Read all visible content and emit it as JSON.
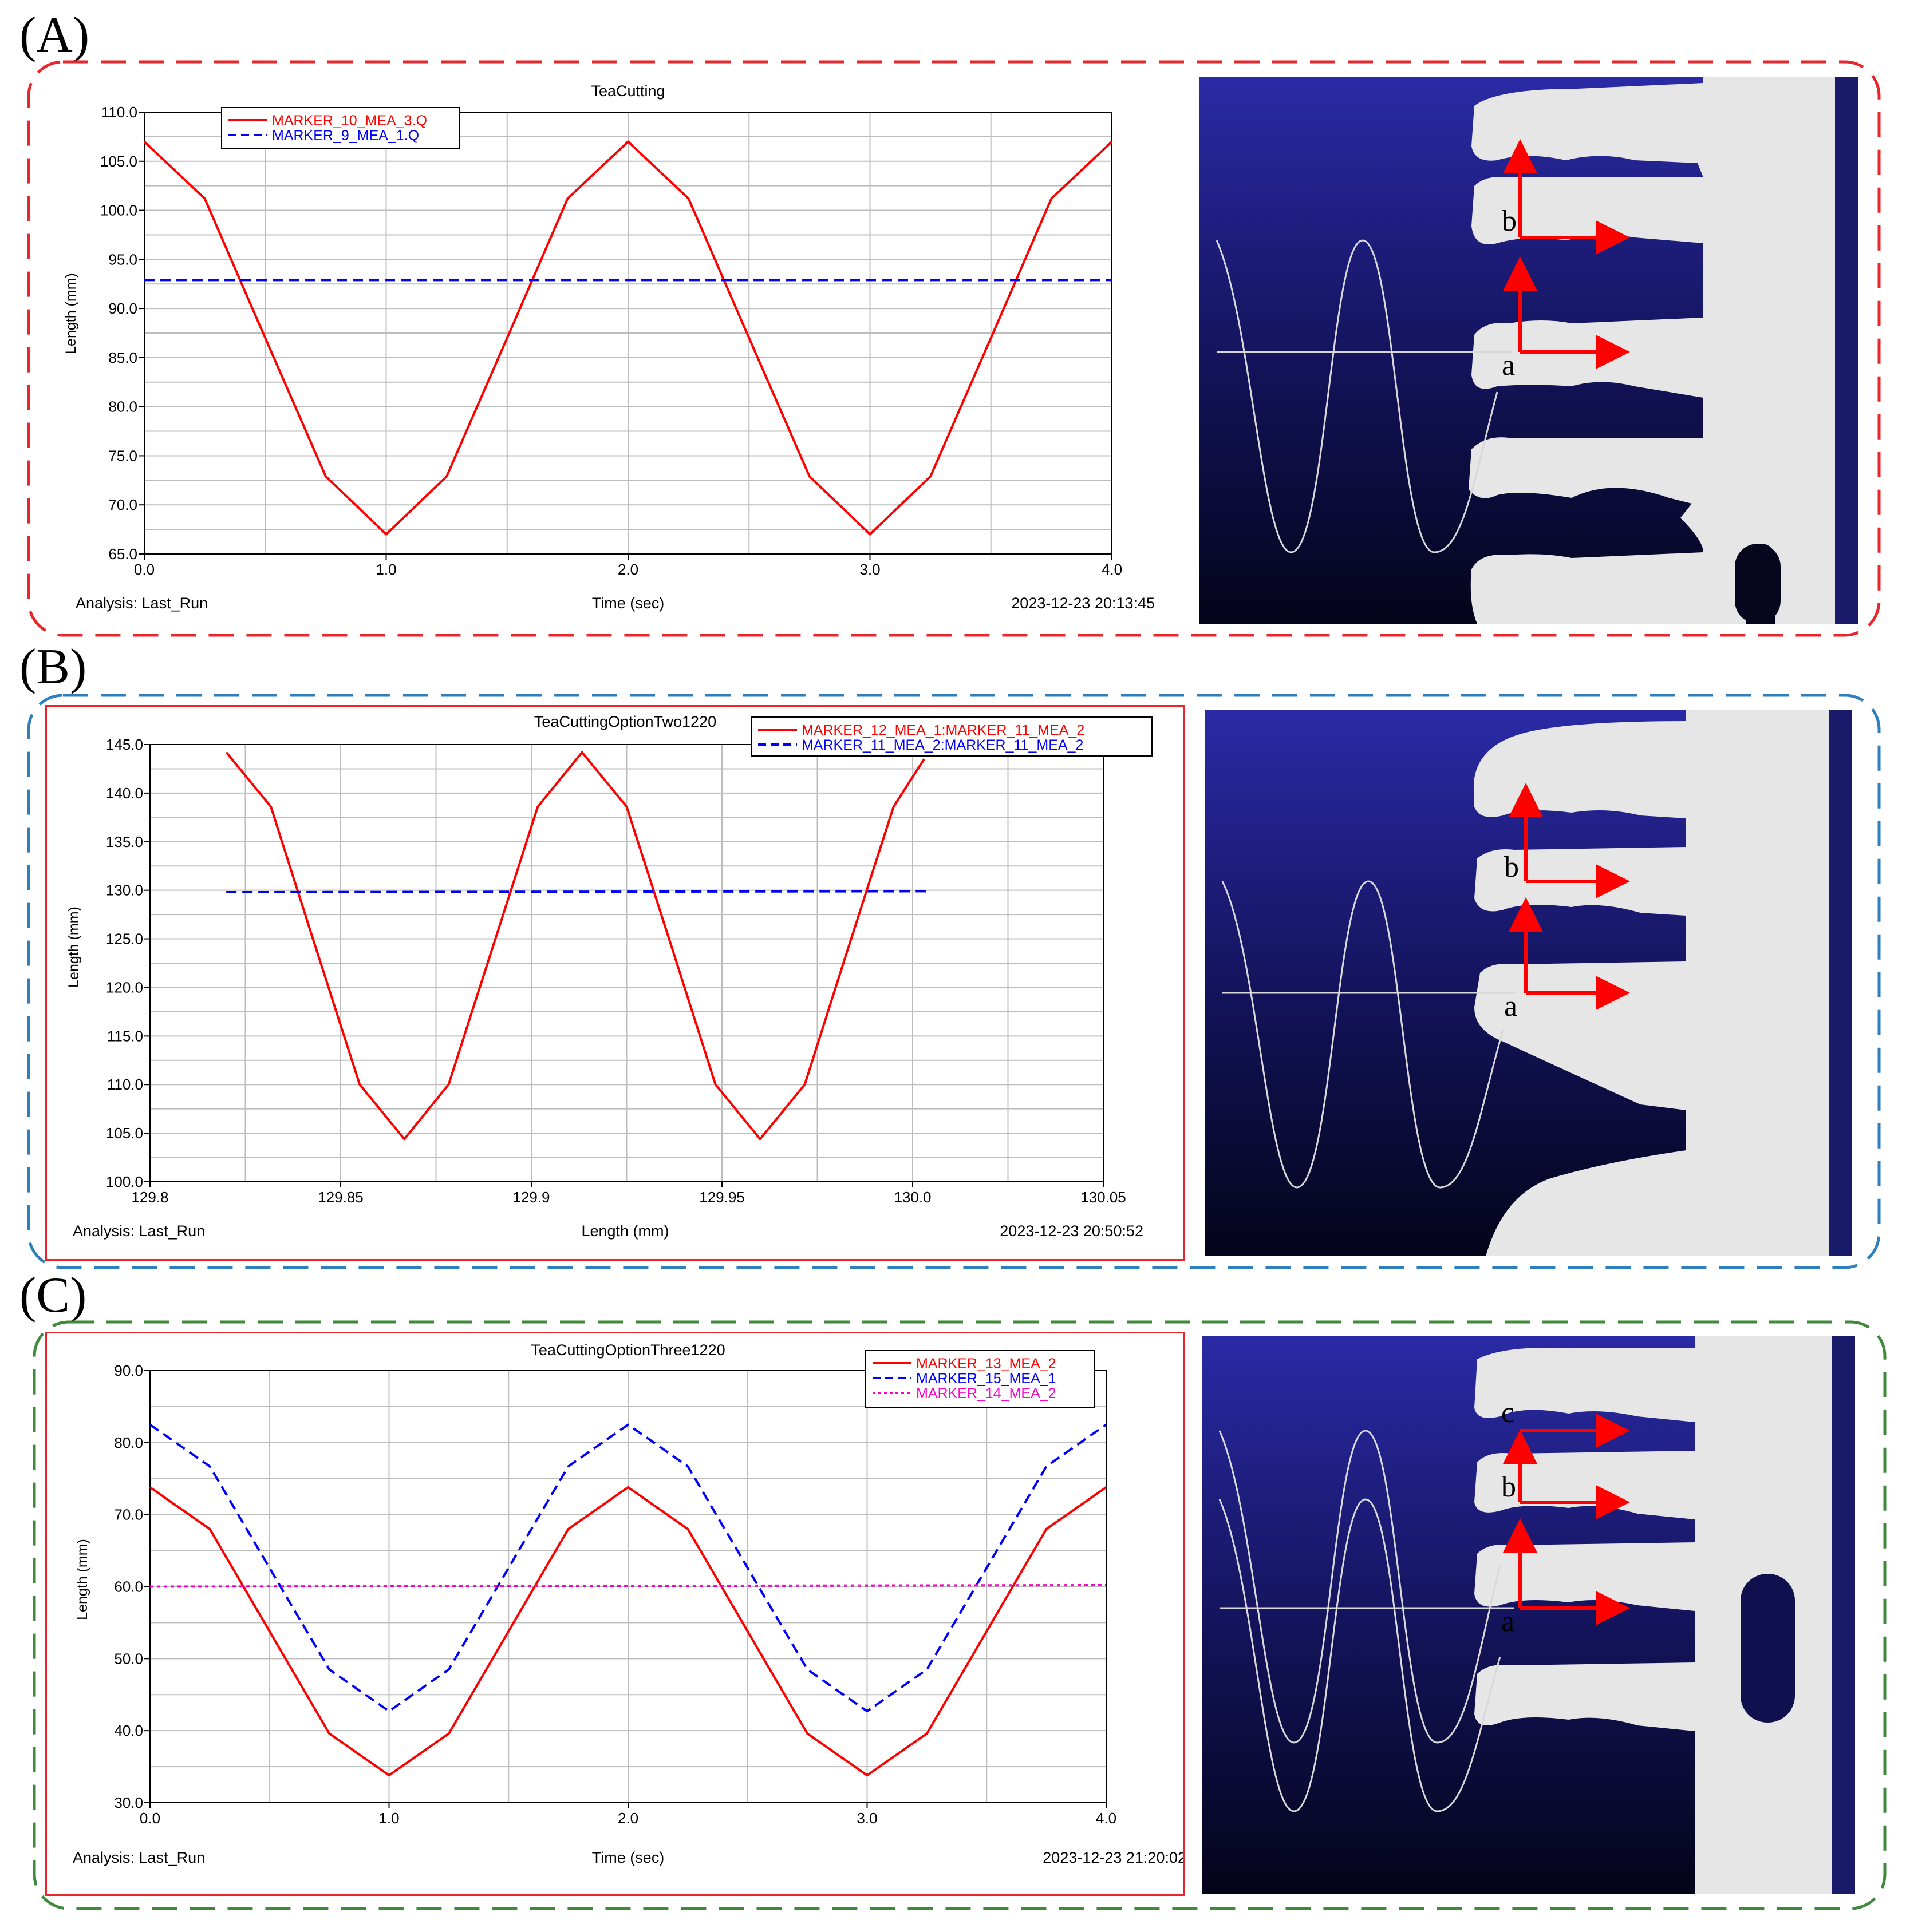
{
  "panels": [
    {
      "letter": "(A)",
      "frame_color": "#e8262b"
    },
    {
      "letter": "(B)",
      "frame_color": "#2f7fbf"
    },
    {
      "letter": "(C)",
      "frame_color": "#3f8a3a"
    }
  ],
  "chart_data": [
    {
      "type": "line",
      "title": "TeaCutting",
      "xlabel": "Time (sec)",
      "ylabel": "Length (mm)",
      "xlim": [
        0.0,
        4.0
      ],
      "ylim": [
        65.0,
        110.0
      ],
      "xticks": [
        0.0,
        1.0,
        2.0,
        3.0,
        4.0
      ],
      "xtick_labels": [
        "0.0",
        "1.0",
        "2.0",
        "3.0",
        "4.0"
      ],
      "yticks": [
        65.0,
        70.0,
        75.0,
        80.0,
        85.0,
        90.0,
        95.0,
        100.0,
        105.0,
        110.0
      ],
      "ytick_labels": [
        "65.0",
        "70.0",
        "75.0",
        "80.0",
        "85.0",
        "90.0",
        "95.0",
        "100.0",
        "105.0",
        "110.0"
      ],
      "grid": true,
      "legend_position": "top-left",
      "footer_left": "Analysis:  Last_Run",
      "footer_right": "2023-12-23 20:13:45",
      "series": [
        {
          "name": "MARKER_10_MEA_3.Q",
          "color": "#ff0000",
          "style": "solid",
          "x": [
            0.0,
            0.25,
            0.5,
            0.75,
            1.0,
            1.25,
            1.5,
            1.75,
            2.0,
            2.25,
            2.5,
            2.75,
            3.0,
            3.25,
            3.5,
            3.75,
            4.0
          ],
          "y": [
            107.0,
            101.2,
            87.0,
            72.9,
            67.0,
            72.9,
            87.0,
            101.2,
            107.0,
            101.2,
            87.0,
            72.9,
            67.0,
            72.9,
            87.0,
            101.2,
            107.0
          ]
        },
        {
          "name": "MARKER_9_MEA_1.Q",
          "color": "#0000ff",
          "style": "dashed",
          "x": [
            0.0,
            4.0
          ],
          "y": [
            92.9,
            92.9
          ]
        }
      ]
    },
    {
      "type": "line",
      "title": "TeaCuttingOptionTwo1220",
      "xlabel": "Length (mm)",
      "ylabel": "Length (mm)",
      "xlim": [
        129.8,
        130.05
      ],
      "ylim": [
        100.0,
        145.0
      ],
      "xticks": [
        129.8,
        129.85,
        129.9,
        129.95,
        130.0,
        130.05
      ],
      "xtick_labels": [
        "129.8",
        "129.85",
        "129.9",
        "129.95",
        "130.0",
        "130.05"
      ],
      "yticks": [
        100.0,
        105.0,
        110.0,
        115.0,
        120.0,
        125.0,
        130.0,
        135.0,
        140.0,
        145.0
      ],
      "ytick_labels": [
        "100.0",
        "105.0",
        "110.0",
        "115.0",
        "120.0",
        "125.0",
        "130.0",
        "135.0",
        "140.0",
        "145.0"
      ],
      "grid": true,
      "legend_position": "top-right",
      "footer_left": "Analysis:  Last_Run",
      "footer_right": "2023-12-23 20:50:52",
      "series": [
        {
          "name": "MARKER_12_MEA_1:MARKER_11_MEA_2",
          "color": "#ff0000",
          "style": "solid",
          "x": [
            129.82,
            129.8317,
            129.8433,
            129.855,
            129.8667,
            129.8783,
            129.89,
            129.9017,
            129.9133,
            129.925,
            129.9367,
            129.9483,
            129.96,
            129.9717,
            129.9833,
            129.995,
            130.003
          ],
          "y": [
            144.2,
            138.6,
            124.3,
            110.0,
            104.4,
            110.0,
            124.3,
            138.6,
            144.2,
            138.6,
            124.3,
            110.0,
            104.4,
            110.0,
            124.3,
            138.6,
            143.5
          ]
        },
        {
          "name": "MARKER_11_MEA_2:MARKER_11_MEA_2",
          "color": "#0000ff",
          "style": "dashed",
          "x": [
            129.82,
            130.005
          ],
          "y": [
            129.8,
            129.9
          ]
        }
      ]
    },
    {
      "type": "line",
      "title": "TeaCuttingOptionThree1220",
      "xlabel": "Time (sec)",
      "ylabel": "Length (mm)",
      "xlim": [
        0.0,
        4.0
      ],
      "ylim": [
        30.0,
        90.0
      ],
      "xticks": [
        0.0,
        1.0,
        2.0,
        3.0,
        4.0
      ],
      "xtick_labels": [
        "0.0",
        "1.0",
        "2.0",
        "3.0",
        "4.0"
      ],
      "yticks": [
        30.0,
        40.0,
        50.0,
        60.0,
        70.0,
        80.0,
        90.0
      ],
      "ytick_labels": [
        "30.0",
        "40.0",
        "50.0",
        "60.0",
        "70.0",
        "80.0",
        "90.0"
      ],
      "grid": true,
      "legend_position": "top-right",
      "footer_left": "Analysis:  Last_Run",
      "footer_right": "2023-12-23 21:20:02",
      "series": [
        {
          "name": "MARKER_13_MEA_2",
          "color": "#ff0000",
          "style": "solid",
          "x": [
            0.0,
            0.25,
            0.5,
            0.75,
            1.0,
            1.25,
            1.5,
            1.75,
            2.0,
            2.25,
            2.5,
            2.75,
            3.0,
            3.25,
            3.5,
            3.75,
            4.0
          ],
          "y": [
            73.8,
            68.0,
            53.8,
            39.6,
            33.8,
            39.6,
            53.8,
            68.0,
            73.8,
            68.0,
            53.8,
            39.6,
            33.8,
            39.6,
            53.8,
            68.0,
            73.8
          ]
        },
        {
          "name": "MARKER_15_MEA_1",
          "color": "#0000ff",
          "style": "dashed",
          "x": [
            0.0,
            0.25,
            0.5,
            0.75,
            1.0,
            1.25,
            1.5,
            1.75,
            2.0,
            2.25,
            2.5,
            2.75,
            3.0,
            3.25,
            3.5,
            3.75,
            4.0
          ],
          "y": [
            82.5,
            76.7,
            62.6,
            48.5,
            42.7,
            48.5,
            62.6,
            76.7,
            82.5,
            76.7,
            62.6,
            48.5,
            42.7,
            48.5,
            62.6,
            76.7,
            82.5
          ]
        },
        {
          "name": "MARKER_14_MEA_2",
          "color": "#ff00cc",
          "style": "dotted",
          "x": [
            0.0,
            4.0
          ],
          "y": [
            60.0,
            60.2
          ]
        }
      ]
    }
  ],
  "simulations": [
    {
      "labels": [
        "b",
        "a"
      ]
    },
    {
      "labels": [
        "b",
        "a"
      ]
    },
    {
      "labels": [
        "c",
        "b",
        "a"
      ]
    }
  ]
}
